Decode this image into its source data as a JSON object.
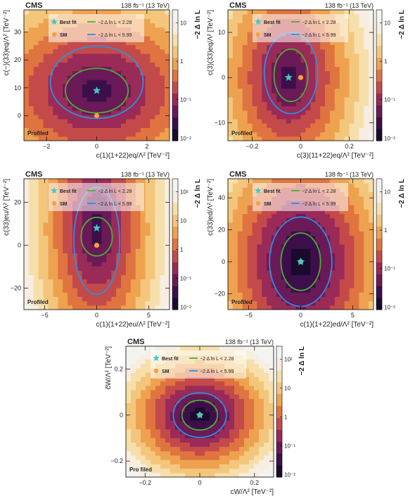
{
  "colors": {
    "cmap": [
      "#1a0b2e",
      "#3d0f4a",
      "#6a1a57",
      "#9a2a57",
      "#c44a4a",
      "#df7440",
      "#eea24f",
      "#f3c67c",
      "#f6dfaa",
      "#f7ede0",
      "#f3f3f0"
    ],
    "contour68": "#4caf36",
    "contour95": "#2f8ee0",
    "best_fit": "#3fc9c9",
    "sm": "#f4a23a"
  },
  "panels": [
    {
      "cms": "CMS",
      "lumi": "138 fb⁻¹ (13 TeV)",
      "profiled": "Profiled",
      "colorbar_label": "−2 Δ ln L",
      "colorbar_ticks": [
        "10",
        "1",
        "10⁻¹",
        "10⁻²"
      ],
      "legend": {
        "best_fit": "Best fit",
        "sm": "SM",
        "c68": "−2 Δ ln L < 2.28",
        "c95": "−2 Δ ln L < 5.99"
      },
      "xlabel": "c(1)(1+22)eq/Λ² [TeV⁻²]",
      "ylabel": "c(−)(33)eq/Λ² [TeV⁻²]",
      "chart_data": {
        "type": "heatmap",
        "xlim": [
          -2.9,
          2.9
        ],
        "ylim": [
          -9,
          38
        ],
        "xticks": [
          -2,
          0,
          2
        ],
        "xtick_labels": [
          "−2",
          "0",
          "2"
        ],
        "yticks": [
          0,
          10,
          20,
          30
        ],
        "ytick_labels": [
          "0",
          "10",
          "20",
          "30"
        ],
        "best_fit": [
          0,
          9
        ],
        "sm": [
          0,
          0
        ],
        "contour68": {
          "cx": 0,
          "cy": 9,
          "rx": 1.25,
          "ry": 8
        },
        "contour95": {
          "cx": 0,
          "cy": 12,
          "rx": 1.85,
          "ry": 13
        }
      }
    },
    {
      "cms": "CMS",
      "lumi": "138 fb⁻¹ (13 TeV)",
      "profiled": "Profiled",
      "colorbar_label": "−2 Δ ln L",
      "colorbar_ticks": [
        "10",
        "1",
        "10⁻¹",
        "10⁻²"
      ],
      "legend": {
        "best_fit": "Best fit",
        "sm": "SM",
        "c68": "−2 Δ ln L < 2.28",
        "c95": "−2 Δ ln L < 5.99"
      },
      "xlabel": "c(3)(11+22)eq/Λ² [TeV⁻²]",
      "ylabel": "c(3)(33)eq/Λ² [TeV⁻²]",
      "chart_data": {
        "type": "heatmap",
        "xlim": [
          -0.3,
          0.3
        ],
        "ylim": [
          -14,
          15
        ],
        "xticks": [
          -0.2,
          0,
          0.2
        ],
        "xtick_labels": [
          "−0.2",
          "0",
          "0.2"
        ],
        "yticks": [
          -10,
          0,
          10
        ],
        "ytick_labels": [
          "−10",
          "0",
          "10"
        ],
        "best_fit": [
          -0.05,
          0
        ],
        "sm": [
          0,
          0
        ],
        "contour68": {
          "cx": -0.04,
          "cy": 0.5,
          "rx": 0.07,
          "ry": 5.8
        },
        "contour95": {
          "cx": -0.04,
          "cy": 1,
          "rx": 0.11,
          "ry": 9
        }
      }
    },
    {
      "cms": "CMS",
      "lumi": "138 fb⁻¹ (13 TeV)",
      "profiled": "Profiled",
      "colorbar_label": "−2 Δ ln L",
      "colorbar_ticks": [
        "10²",
        "10",
        "1",
        "10⁻¹",
        "10⁻²"
      ],
      "legend": {
        "best_fit": "Best fit",
        "sm": "SM",
        "c68": "−2 Δ ln L < 2.28",
        "c95": "−2 Δ ln L < 5.99"
      },
      "xlabel": "c(1)(1+22)eu/Λ² [TeV⁻²]",
      "ylabel": "c(33)eu/Λ² [TeV⁻²]",
      "chart_data": {
        "type": "heatmap",
        "xlim": [
          -7,
          7
        ],
        "ylim": [
          -30,
          31
        ],
        "xticks": [
          -5,
          0,
          5
        ],
        "xtick_labels": [
          "−5",
          "0",
          "5"
        ],
        "yticks": [
          -20,
          0,
          20
        ],
        "ytick_labels": [
          "−20",
          "0",
          "20"
        ],
        "best_fit": [
          0,
          8
        ],
        "sm": [
          0,
          0
        ],
        "contour68": {
          "cx": 0,
          "cy": 4,
          "rx": 1.5,
          "ry": 9
        },
        "contour95": {
          "cx": 0,
          "cy": 2,
          "rx": 2.2,
          "ry": 25
        }
      }
    },
    {
      "cms": "CMS",
      "lumi": "138 fb⁻¹ (13 TeV)",
      "profiled": "Profiled",
      "colorbar_label": "−2 Δ ln L",
      "colorbar_ticks": [
        "10",
        "1",
        "10⁻¹",
        "10⁻²"
      ],
      "legend": {
        "best_fit": "Best fit",
        "sm": "SM",
        "c68": "−2 Δ ln L < 2.28",
        "c95": "−2 Δ ln L < 5.99"
      },
      "xlabel": "c(1)(1+22)ed/Λ² [TeV⁻²]",
      "ylabel": "c(33)ed/Λ² [TeV⁻²]",
      "chart_data": {
        "type": "heatmap",
        "xlim": [
          -7,
          7
        ],
        "ylim": [
          -30,
          52
        ],
        "xticks": [
          -5,
          0,
          5
        ],
        "xtick_labels": [
          "−5",
          "0",
          "5"
        ],
        "yticks": [
          -20,
          0,
          20,
          40
        ],
        "ytick_labels": [
          "−20",
          "0",
          "20",
          "40"
        ],
        "best_fit": [
          0,
          0
        ],
        "sm": [
          0,
          0
        ],
        "contour68": {
          "cx": 0,
          "cy": 0,
          "rx": 1.9,
          "ry": 18
        },
        "contour95": {
          "cx": 0,
          "cy": 0,
          "rx": 3.0,
          "ry": 28
        }
      }
    },
    {
      "cms": "CMS",
      "lumi": "138 fb⁻¹ (13 TeV)",
      "profiled": "Pro filed",
      "colorbar_label": "−2 Δ ln L",
      "colorbar_ticks": [
        "10²",
        "10",
        "1",
        "10⁻¹",
        "10⁻²"
      ],
      "legend": {
        "best_fit": "Best fit",
        "sm": "SM",
        "c68": "−2 Δ ln L < 2.28",
        "c95": "−2 Δ ln L < 5.99"
      },
      "xlabel": "cW/Λ² [TeV⁻²]",
      "ylabel": "c̃W/Λ² [TeV⁻²]",
      "chart_data": {
        "type": "heatmap",
        "xlim": [
          -0.27,
          0.27
        ],
        "ylim": [
          -0.27,
          0.3
        ],
        "xticks": [
          -0.2,
          0,
          0.2
        ],
        "xtick_labels": [
          "−0.2",
          "0",
          "0.2"
        ],
        "yticks": [
          -0.2,
          0,
          0.2
        ],
        "ytick_labels": [
          "−0.2",
          "0",
          "0.2"
        ],
        "best_fit": [
          0,
          0
        ],
        "sm": [
          0,
          0
        ],
        "contour68": {
          "cx": 0,
          "cy": 0,
          "rx": 0.065,
          "ry": 0.065
        },
        "contour95": {
          "cx": 0,
          "cy": 0,
          "rx": 0.097,
          "ry": 0.097
        }
      }
    }
  ]
}
